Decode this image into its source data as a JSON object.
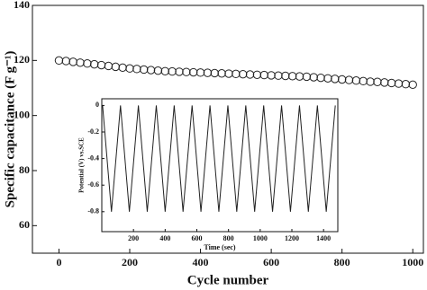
{
  "chart_data": [
    {
      "type": "scatter",
      "xlabel": "Cycle number",
      "ylabel": "Specific capacitance (F g⁻¹)",
      "xlim": [
        -75,
        1030
      ],
      "ylim": [
        50,
        140
      ],
      "xticks": [
        0,
        200,
        400,
        600,
        800,
        1000
      ],
      "yticks": [
        60,
        80,
        100,
        120,
        140
      ],
      "color": "#222222",
      "x": [
        0,
        20,
        40,
        60,
        80,
        100,
        120,
        140,
        160,
        180,
        200,
        220,
        240,
        260,
        280,
        300,
        320,
        340,
        360,
        380,
        400,
        420,
        440,
        460,
        480,
        500,
        520,
        540,
        560,
        580,
        600,
        620,
        640,
        660,
        680,
        700,
        720,
        740,
        760,
        780,
        800,
        820,
        840,
        860,
        880,
        900,
        920,
        940,
        960,
        980,
        1000
      ],
      "values": [
        120.0,
        119.8,
        119.5,
        119.2,
        118.9,
        118.6,
        118.3,
        118.0,
        117.7,
        117.4,
        117.1,
        116.9,
        116.7,
        116.5,
        116.3,
        116.1,
        116.0,
        115.9,
        115.8,
        115.7,
        115.6,
        115.5,
        115.4,
        115.3,
        115.2,
        115.1,
        115.0,
        114.9,
        114.8,
        114.7,
        114.6,
        114.5,
        114.4,
        114.3,
        114.2,
        114.1,
        113.9,
        113.7,
        113.5,
        113.3,
        113.1,
        112.9,
        112.7,
        112.5,
        112.3,
        112.2,
        112.0,
        111.8,
        111.6,
        111.4,
        111.2
      ]
    },
    {
      "type": "line",
      "xlabel": "Time (sec)",
      "ylabel": "Potential (V) vs.SCE",
      "xlim": [
        0,
        1490
      ],
      "ylim": [
        -0.95,
        0.05
      ],
      "xticks": [
        200,
        400,
        600,
        800,
        1000,
        1200,
        1400
      ],
      "yticks": [
        0,
        -0.2,
        -0.4,
        -0.6,
        -0.8
      ],
      "color": "#222222",
      "x": [
        5,
        61,
        118,
        174,
        231,
        287,
        344,
        400,
        457,
        513,
        570,
        626,
        683,
        739,
        796,
        852,
        909,
        965,
        1022,
        1078,
        1135,
        1191,
        1248,
        1304,
        1361,
        1417,
        1474
      ],
      "values": [
        0,
        -0.8,
        0,
        -0.8,
        0,
        -0.8,
        0,
        -0.8,
        0,
        -0.8,
        0,
        -0.8,
        0,
        -0.8,
        0,
        -0.8,
        0,
        -0.8,
        0,
        -0.8,
        0,
        -0.8,
        0,
        -0.8,
        0,
        -0.8,
        0
      ]
    }
  ]
}
